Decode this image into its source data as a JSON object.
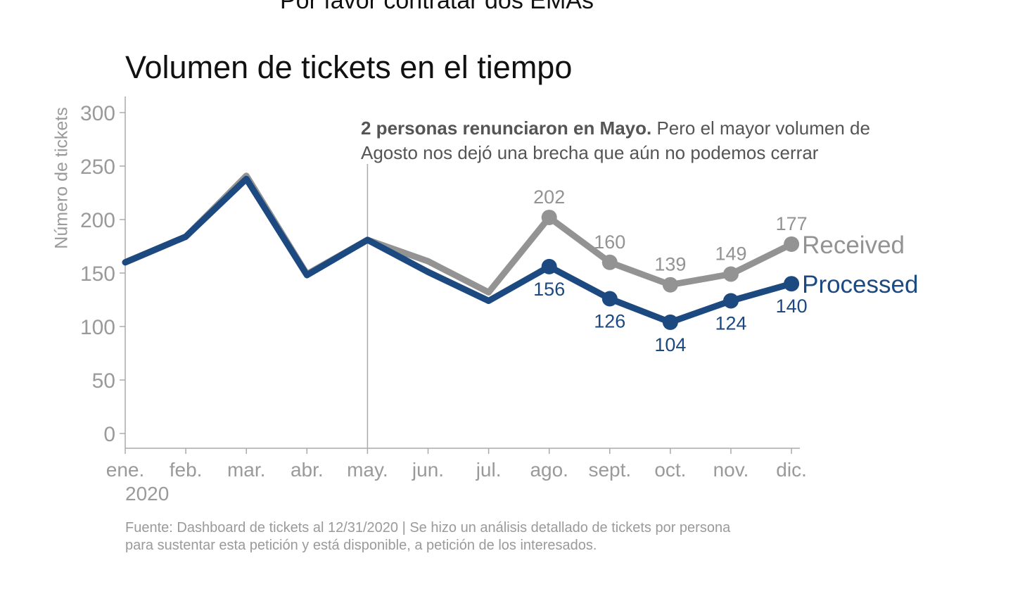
{
  "page": {
    "top_title": "Por favor contratar dos EMAs",
    "caption_line1": "Fuente: Dashboard de tickets al 12/31/2020 | Se hizo un análisis detallado de tickets por persona",
    "caption_line2": "para sustentar esta petición y está disponible, a petición de los interesados."
  },
  "chart_data": {
    "type": "line",
    "title": "Volumen de tickets en el tiempo",
    "xlabel": "",
    "ylabel": "Número de tickets",
    "categories": [
      "ene.",
      "feb.",
      "mar.",
      "abr.",
      "may.",
      "jun.",
      "jul.",
      "ago.",
      "sept.",
      "oct.",
      "nov.",
      "dic."
    ],
    "year_label": "2020",
    "ylim": [
      0,
      300
    ],
    "yticks": [
      0,
      50,
      100,
      150,
      200,
      250,
      300
    ],
    "grid": false,
    "series": [
      {
        "name": "Received",
        "color": "#939393",
        "values": [
          160,
          184,
          241,
          149,
          181,
          161,
          132,
          202,
          160,
          139,
          149,
          177
        ],
        "labeled_from_index": 7
      },
      {
        "name": "Processed",
        "color": "#1c4a80",
        "values": [
          160,
          184,
          238,
          148,
          181,
          151,
          124,
          156,
          126,
          104,
          124,
          140
        ],
        "labeled_from_index": 7
      }
    ],
    "annotation": {
      "x_index": 4,
      "bold": "2 personas renunciaron en Mayo.",
      "text": " Pero el mayor volumen de",
      "line2": "Agosto nos dejó una brecha que aún no podemos cerrar"
    }
  }
}
